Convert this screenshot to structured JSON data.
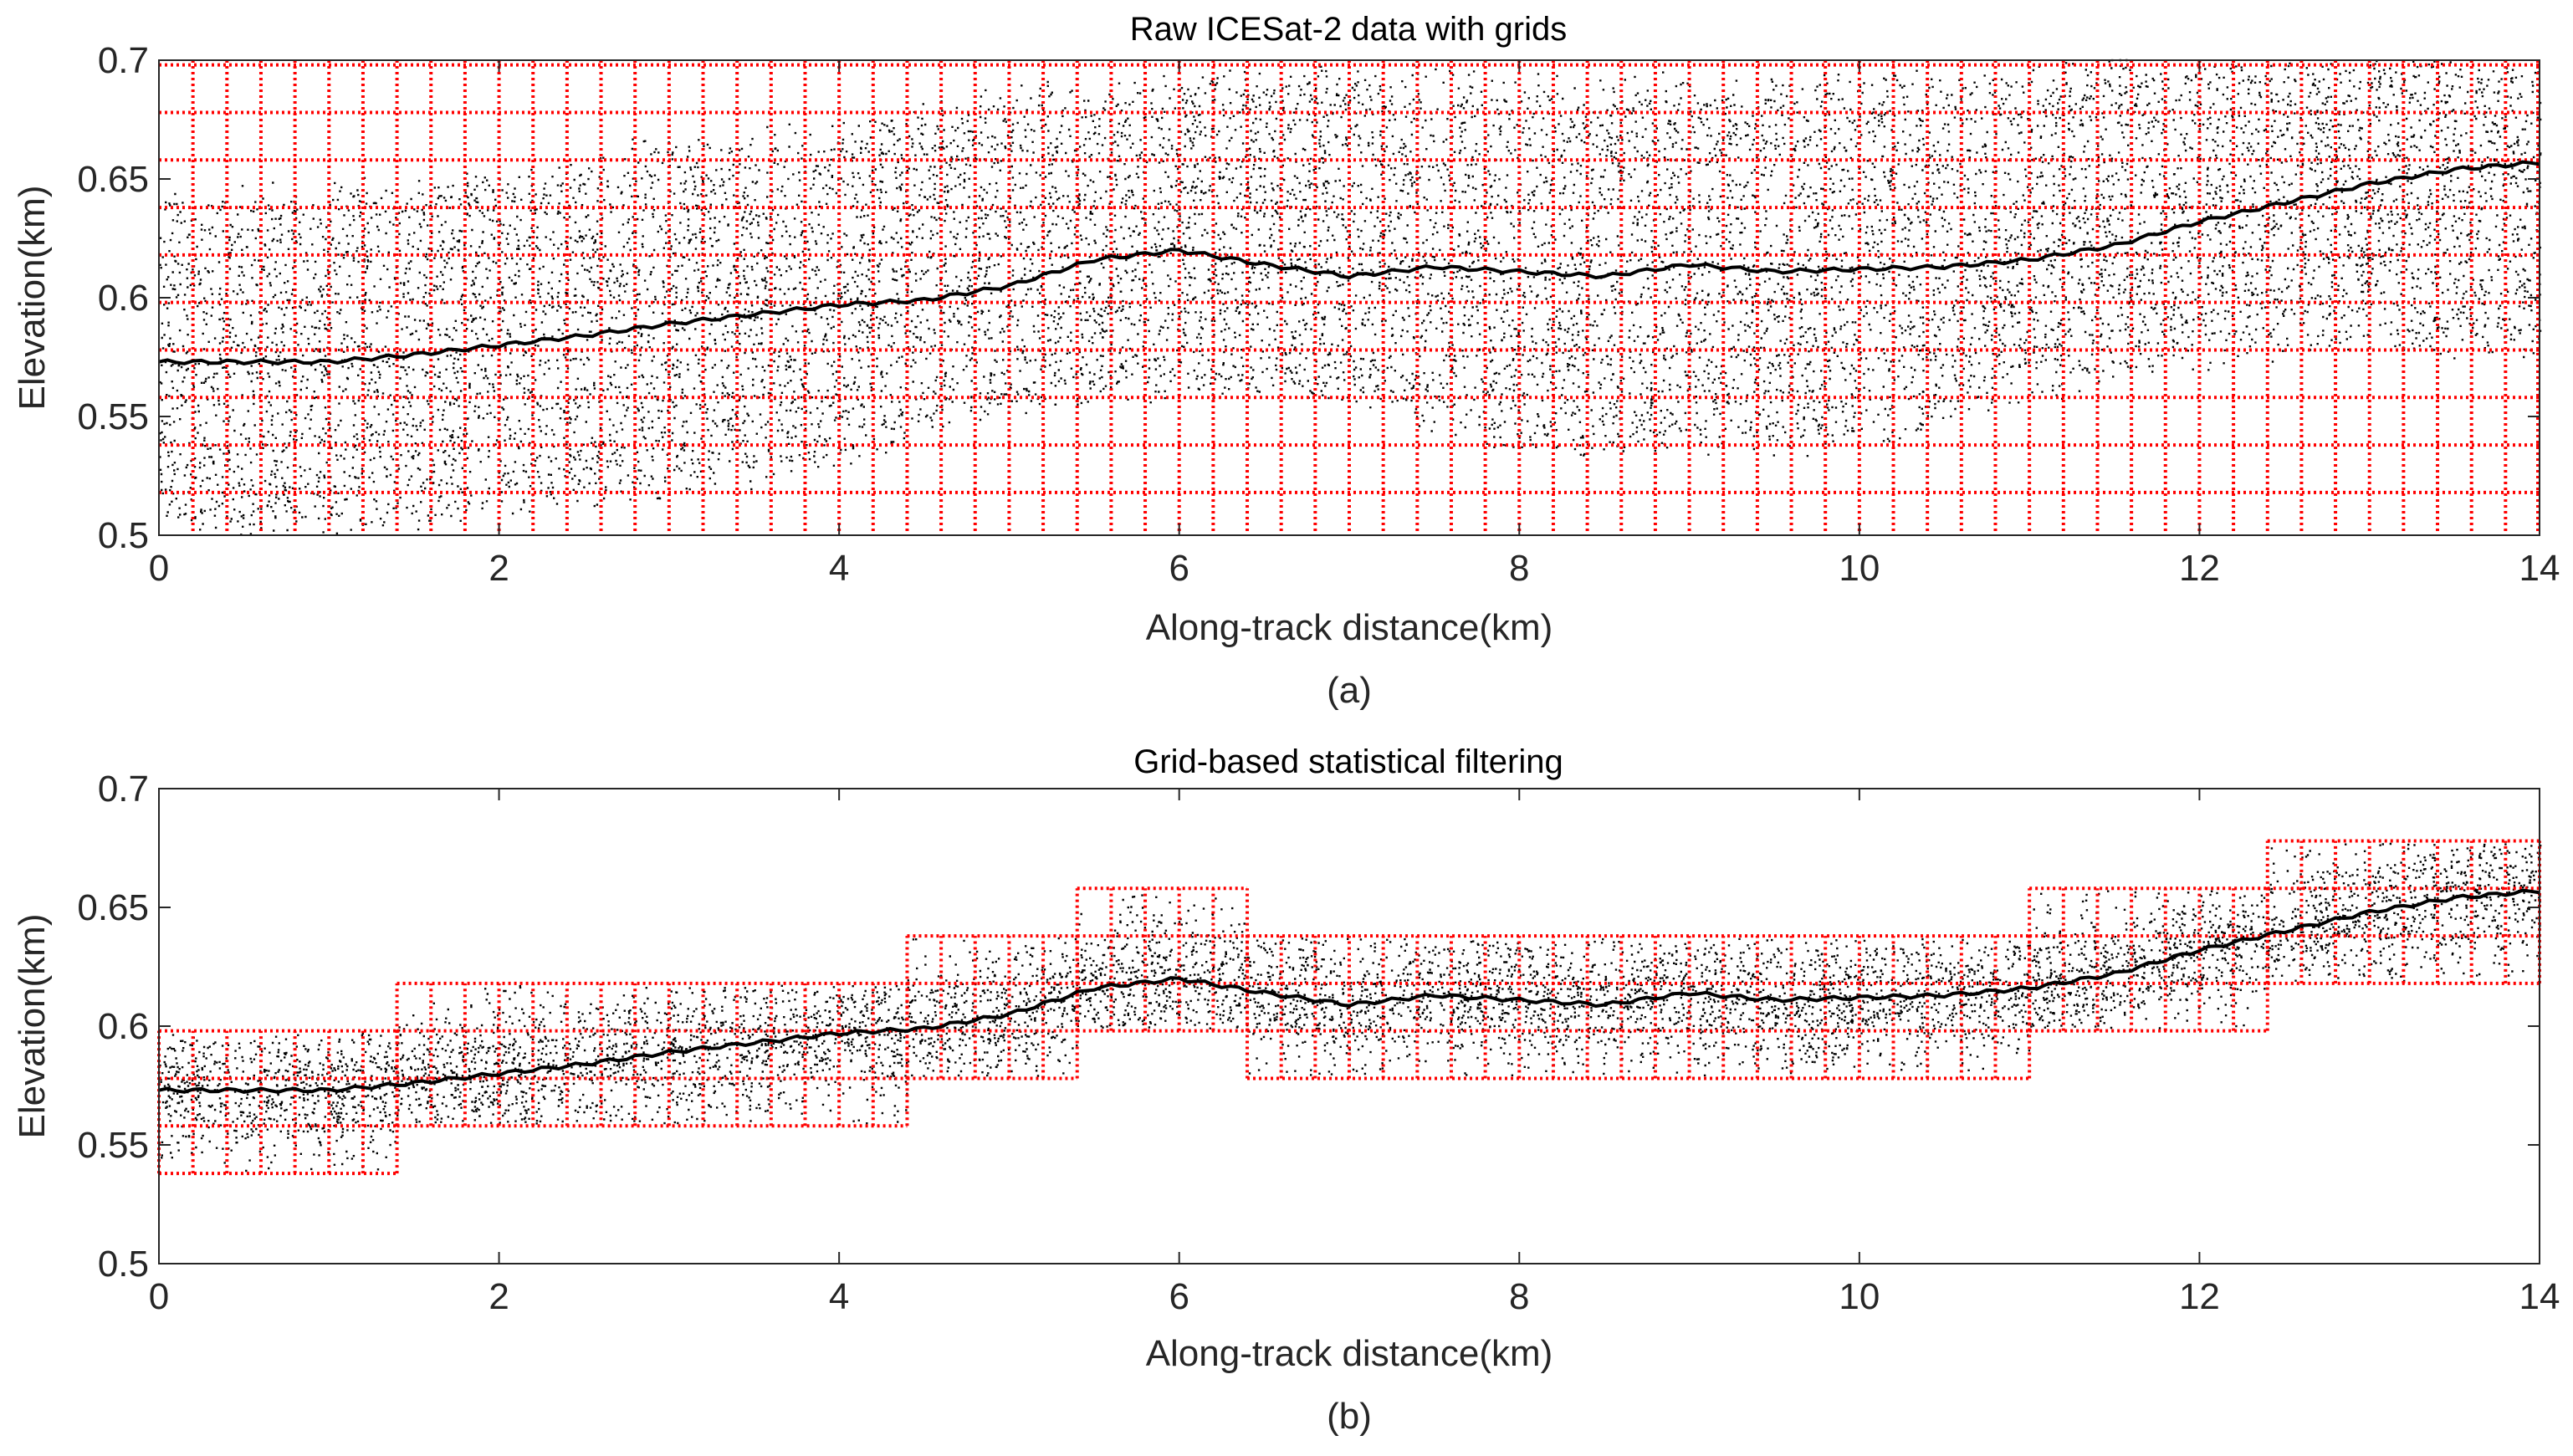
{
  "chart_data": [
    {
      "type": "scatter",
      "panel": "a",
      "title": "Raw ICESat-2 data with grids",
      "xlabel": "Along-track distance(km)",
      "ylabel": "Elevation(km)",
      "caption": "(a)",
      "xlim": [
        0,
        14
      ],
      "ylim": [
        0.5,
        0.7
      ],
      "xticks": [
        0,
        2,
        4,
        6,
        8,
        10,
        12,
        14
      ],
      "yticks": [
        0.5,
        0.55,
        0.6,
        0.65,
        0.7
      ],
      "xtick_labels": [
        "0",
        "2",
        "4",
        "6",
        "8",
        "10",
        "12",
        "14"
      ],
      "ytick_labels": [
        "0.5",
        "0.55",
        "0.6",
        "0.65",
        "0.7"
      ],
      "grid": {
        "cell_width_km": 0.2,
        "cell_height_km": 0.02,
        "extent": "full plot",
        "color": "#ff0000",
        "style": "dotted"
      },
      "photon_envelope": {
        "x": [
          0,
          1,
          2,
          3,
          4,
          5,
          6,
          7,
          8,
          9,
          10,
          11,
          12,
          13,
          14
        ],
        "lower": [
          0.5,
          0.505,
          0.51,
          0.52,
          0.53,
          0.555,
          0.56,
          0.56,
          0.535,
          0.54,
          0.535,
          0.56,
          0.575,
          0.58,
          0.58
        ],
        "upper": [
          0.64,
          0.645,
          0.65,
          0.665,
          0.67,
          0.685,
          0.69,
          0.695,
          0.69,
          0.69,
          0.69,
          0.695,
          0.7,
          0.7,
          0.7
        ]
      },
      "surface_profile": {
        "x": [
          0,
          0.5,
          1,
          1.5,
          2,
          2.5,
          3,
          3.5,
          4,
          4.5,
          5,
          5.5,
          6,
          6.5,
          7,
          7.5,
          8,
          8.5,
          9,
          9.5,
          10,
          10.5,
          11,
          11.5,
          12,
          12.5,
          13,
          13.5,
          14
        ],
        "y": [
          0.573,
          0.573,
          0.573,
          0.576,
          0.58,
          0.584,
          0.589,
          0.593,
          0.597,
          0.599,
          0.605,
          0.616,
          0.62,
          0.614,
          0.609,
          0.613,
          0.611,
          0.609,
          0.614,
          0.611,
          0.612,
          0.613,
          0.616,
          0.622,
          0.632,
          0.64,
          0.648,
          0.654,
          0.657
        ]
      }
    },
    {
      "type": "scatter",
      "panel": "b",
      "title": "Grid-based statistical filtering",
      "xlabel": "Along-track distance(km)",
      "ylabel": "Elevation(km)",
      "caption": "(b)",
      "xlim": [
        0,
        14
      ],
      "ylim": [
        0.5,
        0.7
      ],
      "xticks": [
        0,
        2,
        4,
        6,
        8,
        10,
        12,
        14
      ],
      "yticks": [
        0.5,
        0.55,
        0.6,
        0.65,
        0.7
      ],
      "xtick_labels": [
        "0",
        "2",
        "4",
        "6",
        "8",
        "10",
        "12",
        "14"
      ],
      "ytick_labels": [
        "0.5",
        "0.55",
        "0.6",
        "0.65",
        "0.7"
      ],
      "grid": {
        "cell_width_km": 0.2,
        "cell_height_km": 0.02,
        "color": "#ff0000",
        "style": "dotted"
      },
      "retained_blocks": [
        {
          "x0": 0,
          "x1": 1.4,
          "y0": 0.538,
          "y1": 0.598
        },
        {
          "x0": 1.4,
          "x1": 4.4,
          "y0": 0.558,
          "y1": 0.618
        },
        {
          "x0": 4.4,
          "x1": 5.4,
          "y0": 0.578,
          "y1": 0.638
        },
        {
          "x0": 5.4,
          "x1": 6.4,
          "y0": 0.598,
          "y1": 0.658
        },
        {
          "x0": 6.4,
          "x1": 11.0,
          "y0": 0.578,
          "y1": 0.638
        },
        {
          "x0": 11.0,
          "x1": 12.4,
          "y0": 0.598,
          "y1": 0.658
        },
        {
          "x0": 12.4,
          "x1": 14.0,
          "y0": 0.618,
          "y1": 0.678
        }
      ],
      "surface_profile": {
        "x": [
          0,
          0.5,
          1,
          1.5,
          2,
          2.5,
          3,
          3.5,
          4,
          4.5,
          5,
          5.5,
          6,
          6.5,
          7,
          7.5,
          8,
          8.5,
          9,
          9.5,
          10,
          10.5,
          11,
          11.5,
          12,
          12.5,
          13,
          13.5,
          14
        ],
        "y": [
          0.573,
          0.573,
          0.573,
          0.576,
          0.58,
          0.584,
          0.589,
          0.593,
          0.597,
          0.599,
          0.605,
          0.616,
          0.62,
          0.614,
          0.609,
          0.613,
          0.611,
          0.609,
          0.614,
          0.611,
          0.612,
          0.613,
          0.616,
          0.622,
          0.632,
          0.64,
          0.648,
          0.654,
          0.657
        ]
      }
    }
  ],
  "colors": {
    "grid": "#ff0000",
    "photons": "#000000",
    "profile": "#000000",
    "axis": "#262626"
  }
}
